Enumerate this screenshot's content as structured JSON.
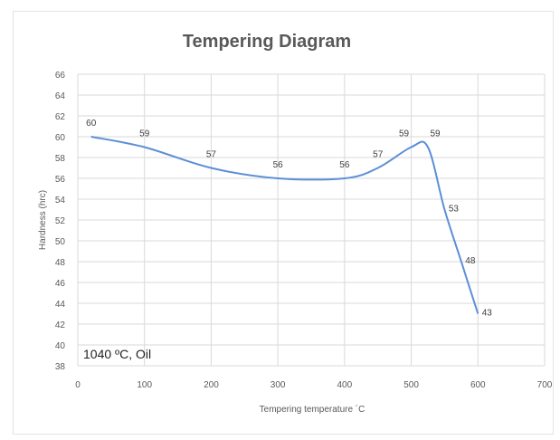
{
  "chart_data": {
    "type": "line",
    "title": "Tempering Diagram",
    "xlabel": "Tempering temperature ´C",
    "ylabel": "Hardness (hrc)",
    "annotation": "1040 ºC, Oil",
    "xlim": [
      0,
      700
    ],
    "ylim": [
      38,
      66
    ],
    "xticks": [
      0,
      100,
      200,
      300,
      400,
      500,
      600,
      700
    ],
    "yticks": [
      38,
      40,
      42,
      44,
      46,
      48,
      50,
      52,
      54,
      56,
      58,
      60,
      62,
      64,
      66
    ],
    "grid": true,
    "series": [
      {
        "color": "#5b8fd6",
        "x": [
          20,
          100,
          200,
          300,
          400,
          450,
          500,
          525,
          550,
          575,
          600
        ],
        "y": [
          60,
          59,
          57,
          56,
          56,
          57,
          59,
          59,
          53,
          48,
          43
        ],
        "labels": [
          "60",
          "59",
          "57",
          "56",
          "56",
          "57",
          "59",
          "59",
          "53",
          "48",
          "43"
        ]
      }
    ]
  }
}
